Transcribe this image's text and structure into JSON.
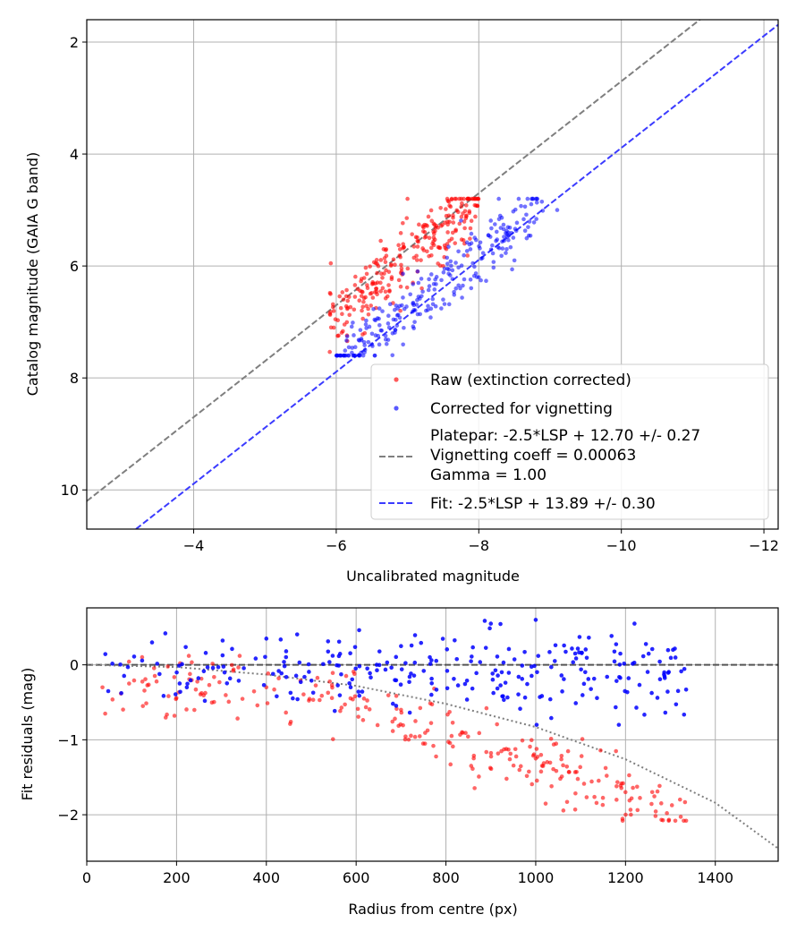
{
  "chart_data": [
    {
      "type": "scatter",
      "xlabel": "Uncalibrated magnitude",
      "ylabel": "Catalog magnitude (GAIA G band)",
      "xlim": [
        -2.5,
        -12.2
      ],
      "ylim": [
        10.7,
        1.6
      ],
      "x_inverted": true,
      "y_inverted": true,
      "xticks": [
        -4,
        -6,
        -8,
        -10,
        -12
      ],
      "yticks": [
        2,
        4,
        6,
        8,
        10
      ],
      "grid": true,
      "legend_placement": "lower right",
      "legend": {
        "raw": "Raw (extinction corrected)",
        "corrected": "Corrected for vignetting",
        "platepar_lines": [
          "Platepar: -2.5*LSP + 12.70 +/- 0.27",
          "Vignetting coeff = 0.00063",
          "Gamma = 1.00"
        ],
        "fit": "Fit: -2.5*LSP + 13.89 +/- 0.30"
      },
      "series": [
        {
          "name": "Raw (extinction corrected)",
          "color": "#ff0000",
          "count": 260,
          "x_range": [
            -5.6,
            -8.1
          ],
          "y_range": [
            4.8,
            7.6
          ],
          "points_sample": [
            [
              -6.4,
              7.2
            ],
            [
              -6.9,
              6.8
            ],
            [
              -7.2,
              6.4
            ],
            [
              -7.5,
              6.0
            ],
            [
              -7.8,
              5.6
            ],
            [
              -6.1,
              6.6
            ],
            [
              -7.0,
              4.8
            ],
            [
              -6.7,
              5.7
            ]
          ]
        },
        {
          "name": "Corrected for vignetting",
          "color": "#0000ff",
          "count": 260,
          "x_range": [
            -5.9,
            -9.1
          ],
          "y_range": [
            4.8,
            7.6
          ],
          "points_sample": [
            [
              -6.5,
              7.4
            ],
            [
              -7.1,
              7.0
            ],
            [
              -7.5,
              6.6
            ],
            [
              -8.0,
              6.2
            ],
            [
              -8.5,
              5.9
            ],
            [
              -8.8,
              4.8
            ],
            [
              -9.1,
              5.0
            ]
          ]
        },
        {
          "name": "Platepar: -2.5*LSP + 12.70 +/- 0.27",
          "type": "line",
          "style": "dashed",
          "color": "#7f7f7f",
          "intercept": 12.7,
          "slope": 1
        },
        {
          "name": "Fit: -2.5*LSP + 13.89 +/- 0.30",
          "type": "line",
          "style": "dashed",
          "color": "#3b3bff",
          "intercept": 13.89,
          "slope": 1
        }
      ]
    },
    {
      "type": "scatter",
      "xlabel": "Radius from centre (px)",
      "ylabel": "Fit residuals (mag)",
      "xlim": [
        0,
        1540
      ],
      "ylim": [
        -2.62,
        0.76
      ],
      "xticks": [
        0,
        200,
        400,
        600,
        800,
        1000,
        1200,
        1400
      ],
      "yticks": [
        0,
        -1,
        -2
      ],
      "grid": true,
      "series": [
        {
          "name": "raw residuals",
          "color": "#ff0000",
          "count": 260,
          "x_range": [
            35,
            1335
          ],
          "y_range": [
            -2.08,
            0.12
          ],
          "points_sample": [
            [
              35,
              -0.3
            ],
            [
              125,
              -0.55
            ],
            [
              400,
              -0.3
            ],
            [
              700,
              -0.6
            ],
            [
              1000,
              -1.25
            ],
            [
              1180,
              -1.8
            ],
            [
              1335,
              -2.08
            ]
          ]
        },
        {
          "name": "corrected residuals",
          "color": "#0000ff",
          "count": 260,
          "x_range": [
            35,
            1335
          ],
          "y_range": [
            -0.8,
            0.62
          ],
          "points_sample": [
            [
              175,
              0.42
            ],
            [
              400,
              0.35
            ],
            [
              700,
              0.25
            ],
            [
              900,
              0.55
            ],
            [
              1000,
              0.6
            ],
            [
              1220,
              0.55
            ],
            [
              1335,
              -0.33
            ]
          ]
        },
        {
          "name": "zero line",
          "type": "line",
          "style": "dashed",
          "color": "#555555",
          "y": 0
        },
        {
          "name": "vignetting model",
          "type": "line",
          "style": "dotted",
          "color": "#7f7f7f",
          "x": [
            0,
            200,
            400,
            600,
            800,
            1000,
            1200,
            1400,
            1540
          ],
          "y": [
            0.0,
            -0.03,
            -0.13,
            -0.28,
            -0.52,
            -0.83,
            -1.26,
            -1.84,
            -2.45
          ]
        }
      ]
    }
  ]
}
